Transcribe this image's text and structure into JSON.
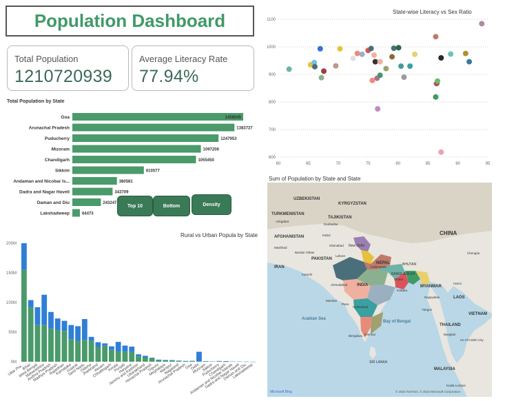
{
  "header": {
    "title": "Population Dashboard"
  },
  "cards": [
    {
      "label": "Total Population",
      "value": "1210720939"
    },
    {
      "label": "Average Literacy Rate",
      "value": "77.94%"
    }
  ],
  "buttons": {
    "top10": "Top 10",
    "bottom": "Bottom",
    "density": "Density"
  },
  "colors": {
    "green": "#4a9a6a",
    "blue": "#2f7fd6",
    "accent": "#3f9a67"
  },
  "chart_data": [
    {
      "type": "bar",
      "orientation": "horizontal",
      "title": "Total Population by State",
      "categories": [
        "Goa",
        "Arunachal Pradesh",
        "Puducherry",
        "Mizoram",
        "Chandigarh",
        "Sikkim",
        "Andaman and Nicobar Is...",
        "Dadra and Nagar Haveli",
        "Daman and Diu",
        "Lakshadweep"
      ],
      "values": [
        1458545,
        1383727,
        1247953,
        1097206,
        1055450,
        610577,
        380581,
        343709,
        243247,
        64473
      ],
      "value_labels": [
        "1458545",
        "1383727",
        "1247953",
        "1097206",
        "1055450",
        "610577",
        "380581",
        "343709",
        "243247",
        "64473"
      ],
      "color": "#4a9a6a"
    },
    {
      "type": "scatter",
      "title": "State-wise Literacy vs Sex Ratio",
      "xlim": [
        60,
        95
      ],
      "ylim": [
        600,
        1100
      ],
      "x_ticks": [
        "60",
        "65",
        "70",
        "75",
        "80",
        "85",
        "90",
        "95"
      ],
      "y_ticks": [
        "600",
        "700",
        "800",
        "900",
        "1000",
        "1100"
      ],
      "grid": true,
      "points": [
        {
          "x": 61.8,
          "y": 919,
          "color": "#6fb3a8"
        },
        {
          "x": 65.4,
          "y": 935,
          "color": "#e8c13a"
        },
        {
          "x": 66.0,
          "y": 943,
          "color": "#6fc2e0"
        },
        {
          "x": 66.1,
          "y": 928,
          "color": "#4a6f7a"
        },
        {
          "x": 67.0,
          "y": 993,
          "color": "#3a6fd6"
        },
        {
          "x": 67.2,
          "y": 888,
          "color": "#8bb08f"
        },
        {
          "x": 67.6,
          "y": 912,
          "color": "#a23a3a"
        },
        {
          "x": 69.6,
          "y": 931,
          "color": "#b79a8a"
        },
        {
          "x": 70.3,
          "y": 993,
          "color": "#e8c13a"
        },
        {
          "x": 72.5,
          "y": 958,
          "color": "#e0e0e0"
        },
        {
          "x": 73.2,
          "y": 976,
          "color": "#e88c7a"
        },
        {
          "x": 74.0,
          "y": 973,
          "color": "#9ab0c0"
        },
        {
          "x": 75.0,
          "y": 987,
          "color": "#d9545a"
        },
        {
          "x": 75.5,
          "y": 994,
          "color": "#4a6f7a"
        },
        {
          "x": 76.0,
          "y": 970,
          "color": "#f0b0a0"
        },
        {
          "x": 76.5,
          "y": 886,
          "color": "#b07090"
        },
        {
          "x": 75.7,
          "y": 878,
          "color": "#f08a7a"
        },
        {
          "x": 76.2,
          "y": 946,
          "color": "#333333"
        },
        {
          "x": 76.6,
          "y": 775,
          "color": "#c08ac0"
        },
        {
          "x": 77.0,
          "y": 897,
          "color": "#3f9a67"
        },
        {
          "x": 77.0,
          "y": 946,
          "color": "#f0b0a0"
        },
        {
          "x": 78.0,
          "y": 921,
          "color": "#a0a070"
        },
        {
          "x": 79.0,
          "y": 964,
          "color": "#8a6a3a"
        },
        {
          "x": 79.3,
          "y": 995,
          "color": "#4a6f7a"
        },
        {
          "x": 80.1,
          "y": 997,
          "color": "#2a6a4a"
        },
        {
          "x": 80.5,
          "y": 930,
          "color": "#4a9a9a"
        },
        {
          "x": 81.0,
          "y": 890,
          "color": "#9a9a9a"
        },
        {
          "x": 82.0,
          "y": 930,
          "color": "#3aa0a0"
        },
        {
          "x": 82.8,
          "y": 973,
          "color": "#e8d070"
        },
        {
          "x": 86.3,
          "y": 1037,
          "color": "#c07a6a"
        },
        {
          "x": 86.4,
          "y": 866,
          "color": "#c08ac0"
        },
        {
          "x": 86.5,
          "y": 868,
          "color": "#b05050"
        },
        {
          "x": 86.6,
          "y": 876,
          "color": "#6abf6a"
        },
        {
          "x": 86.3,
          "y": 818,
          "color": "#3f9a67"
        },
        {
          "x": 87.2,
          "y": 960,
          "color": "#2a2a2a"
        },
        {
          "x": 87.2,
          "y": 618,
          "color": "#f0a0b0"
        },
        {
          "x": 88.8,
          "y": 974,
          "color": "#6fc2b0"
        },
        {
          "x": 91.3,
          "y": 976,
          "color": "#b0902a"
        },
        {
          "x": 91.9,
          "y": 946,
          "color": "#3a7aa0"
        },
        {
          "x": 94.0,
          "y": 1084,
          "color": "#b08aa0"
        }
      ]
    },
    {
      "type": "bar",
      "stacked": true,
      "title": "Rural vs Urban Popula by State",
      "ylim": [
        0,
        200
      ],
      "y_ticks": [
        "0M",
        "50M",
        "100M",
        "150M",
        "200M"
      ],
      "categories": [
        "Uttar Pra...",
        "Bihar",
        "West Bengal",
        "Maharashtra",
        "Andhra Pradesh",
        "Madhya Pradesh",
        "Rajasthan",
        "Karnataka",
        "Gujarat",
        "Tamil Nadu",
        "Odisha",
        "Jharkhand",
        "Assam",
        "Chhattisgarh",
        "Kerala",
        "Punjab",
        "Haryana",
        "Jammu and Kashmir",
        "Uttarakhand",
        "Himachal Pradesh",
        "Tripura",
        "Meghalaya",
        "Manipur",
        "Nagaland",
        "Arunachal Pradesh",
        "Goa",
        "Delhi",
        "Mizoram",
        "Sikkim",
        "Puducherry",
        "Chandigarh",
        "Andaman and Nicobar Islands",
        "Dadra and Nagar Haveli",
        "Daman and Diu",
        "Lakshadweep"
      ],
      "series": [
        {
          "name": "Rural",
          "color": "#4a9a6a",
          "values": [
            155,
            92,
            62,
            62,
            56,
            53,
            52,
            38,
            35,
            37,
            35,
            25,
            27,
            20,
            17.5,
            17.3,
            16.5,
            9.1,
            7,
            6.2,
            2.7,
            2.4,
            2,
            1.4,
            1.1,
            0.6,
            0.4,
            0.5,
            0.5,
            0.4,
            0.03,
            0.2,
            0.18,
            0.06,
            0.01
          ]
        },
        {
          "name": "Urban",
          "color": "#2f7fd6",
          "values": [
            45,
            12,
            30,
            51,
            28,
            20,
            17,
            24,
            25,
            35,
            7,
            8,
            4,
            6,
            16,
            10,
            9,
            3.4,
            3,
            0.7,
            0.9,
            0.6,
            0.8,
            0.6,
            0.3,
            0.9,
            16.4,
            0.6,
            0.1,
            0.9,
            1,
            0.1,
            0.16,
            0.18,
            0.05
          ]
        }
      ]
    },
    {
      "type": "map",
      "title": "Sum of Population by State and State",
      "labels": [
        "UZBEKISTAN",
        "KYRGYZSTAN",
        "TURKMENISTAN",
        "TAJIKISTAN",
        "Ashgabat",
        "Dushanbe",
        "AFGHANISTAN",
        "Kabul",
        "Islamabad",
        "Lahore",
        "CHINA",
        "Mashhad",
        "IRAN",
        "PAKISTAN",
        "New Delhi",
        "NEPAL",
        "Kathmandu",
        "BHUTAN",
        "Chengdu",
        "BANGLADESH",
        "Dhaka",
        "Karachi",
        "INDIA",
        "Kolkata",
        "Ahmedabad",
        "Mumbai",
        "Pune",
        "Hyderabad",
        "Bay of Bengal",
        "MYANMAR",
        "Naypyidaw",
        "Yangon",
        "LAOS",
        "Arabian Sea",
        "THAILAND",
        "Bangkok",
        "VIETNAM",
        "Chennai",
        "Bengaluru",
        "Hanoi",
        "SRI LANKA",
        "Kuala Lumpur",
        "MALAYSIA",
        "Ho Chi Minh City",
        "Bandar Abbas"
      ],
      "attribution": "© 2023 TomTom, © 2023 Microsoft Corporation",
      "logo": "Microsoft Bing"
    }
  ]
}
